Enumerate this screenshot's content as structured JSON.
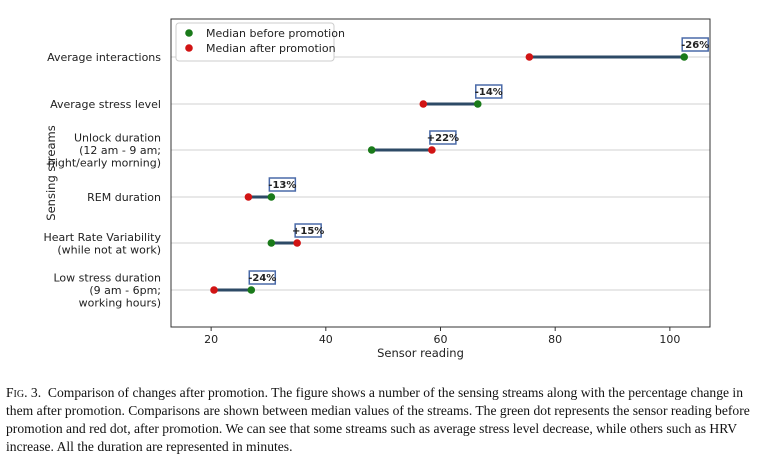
{
  "chart_data": {
    "type": "dumbbell",
    "xlabel": "Sensor reading",
    "ylabel": "Sensing streams",
    "xlim": [
      13,
      107
    ],
    "xticks": [
      20,
      40,
      60,
      80,
      100
    ],
    "grid": "horizontal",
    "legend_position": "top-left",
    "legend": [
      {
        "name": "Median before promotion",
        "color": "#1a7a1a"
      },
      {
        "name": "Median after promotion",
        "color": "#d11414"
      }
    ],
    "categories": [
      {
        "label": [
          "Average interactions"
        ],
        "before": 102.5,
        "after": 75.5,
        "change": "-26%"
      },
      {
        "label": [
          "Average stress level"
        ],
        "before": 66.5,
        "after": 57.0,
        "change": "-14%"
      },
      {
        "label": [
          "Unlock duration",
          "(12 am - 9 am;",
          "night/early morning)"
        ],
        "before": 48.0,
        "after": 58.5,
        "change": "+22%"
      },
      {
        "label": [
          "REM duration"
        ],
        "before": 30.5,
        "after": 26.5,
        "change": "-13%"
      },
      {
        "label": [
          "Heart Rate Variability",
          "(while not at work)"
        ],
        "before": 30.5,
        "after": 35.0,
        "change": "+15%"
      },
      {
        "label": [
          "Low stress duration",
          "(9 am - 6pm;",
          "working hours)"
        ],
        "before": 27.0,
        "after": 20.5,
        "change": "-24%"
      }
    ],
    "colors": {
      "line": "#2d4a66",
      "label_box": "#4a6aa8",
      "grid": "#d0d0d0"
    }
  },
  "caption": {
    "label": "Fig. 3.",
    "text": "Comparison of changes after promotion. The figure shows a number of the sensing streams along with the percentage change in them after promotion. Comparisons are shown between median values of the streams. The green dot represents the sensor reading before promotion and red dot, after promotion. We can see that some streams such as average stress level decrease, while others such as HRV increase. All the duration are represented in minutes."
  }
}
